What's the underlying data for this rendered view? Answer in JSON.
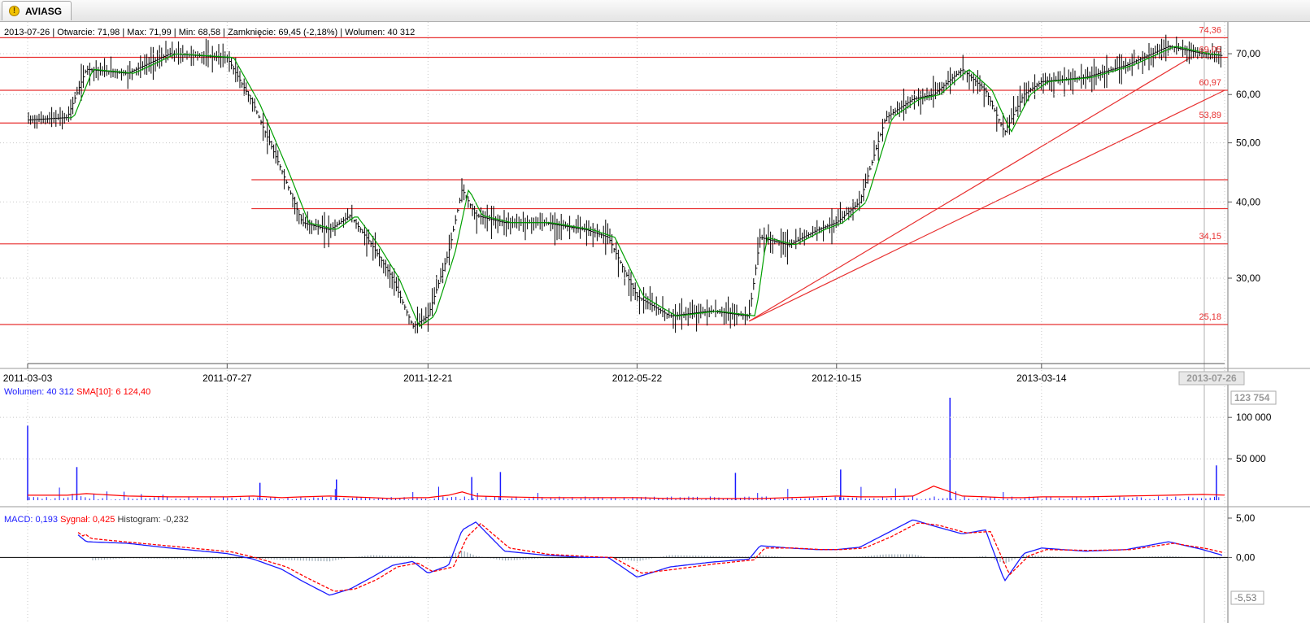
{
  "tab": {
    "title": "AVIASG",
    "icon": "warning-icon"
  },
  "header": {
    "date": "2013-07-26",
    "open": "Otwarcie: 71,98",
    "max": "Max: 71,99",
    "min": "Min: 68,58",
    "close": "Zamknięcie: 69,45 (-2,18%)",
    "volume": "Wolumen: 40 312"
  },
  "volume_legend": {
    "volume": "Wolumen: 40 312",
    "sma": "SMA[10]: 6 124,40"
  },
  "macd_legend": {
    "macd": "MACD: 0,193",
    "signal": "Sygnał: 0,425",
    "histogram": "Histogram: -0,232"
  },
  "colors": {
    "price_bar": "#000000",
    "sma_price": "#00a000",
    "level": "#e83030",
    "volume": "#1a1aff",
    "volume_sma": "#ff0000",
    "macd": "#1a1aff",
    "signal": "#ff0000",
    "histogram": "#9aa9b4",
    "grid": "#c8c8c8"
  },
  "chart_data": [
    {
      "type": "line",
      "title": "AVIASG",
      "y_scale": "log",
      "ylim": [
        22,
        77
      ],
      "yticks": [
        "70,00",
        "60,00",
        "50,00",
        "40,00",
        "30,00"
      ],
      "ytick_values": [
        70,
        60,
        50,
        40,
        30
      ],
      "xticks": [
        "2011-03-03",
        "2011-07-27",
        "2011-12-21",
        "2012-05-22",
        "2012-10-15",
        "2013-03-14"
      ],
      "x_last_label": "2013-07-26",
      "x": [
        "2011-03-03",
        "2011-04-01",
        "2011-04-15",
        "2011-05-15",
        "2011-06-15",
        "2011-07-27",
        "2011-08-15",
        "2011-09-05",
        "2011-09-20",
        "2011-10-10",
        "2011-10-25",
        "2011-11-10",
        "2011-11-25",
        "2011-12-10",
        "2011-12-21",
        "2012-01-05",
        "2012-01-15",
        "2012-01-25",
        "2012-02-15",
        "2012-03-15",
        "2012-04-15",
        "2012-05-01",
        "2012-05-22",
        "2012-06-15",
        "2012-07-15",
        "2012-08-12",
        "2012-08-20",
        "2012-09-10",
        "2012-10-01",
        "2012-10-15",
        "2012-11-01",
        "2012-11-20",
        "2012-12-10",
        "2012-12-25",
        "2013-01-15",
        "2013-02-01",
        "2013-02-15",
        "2013-03-01",
        "2013-03-14",
        "2013-04-15",
        "2013-05-15",
        "2013-06-15",
        "2013-07-10",
        "2013-07-26"
      ],
      "series": [
        {
          "name": "close",
          "values": [
            54.5,
            55,
            66,
            65,
            70,
            69,
            58,
            45,
            37,
            36,
            38,
            34,
            30,
            25,
            26,
            33,
            42,
            38,
            37,
            37,
            36,
            35,
            28,
            26,
            26.5,
            26,
            35,
            34,
            36,
            37,
            40,
            55,
            59,
            60,
            66,
            61,
            52,
            60,
            63,
            64,
            67,
            72,
            70,
            69.45
          ]
        }
      ],
      "levels": [
        {
          "value": 74.36,
          "label": "74,36"
        },
        {
          "value": 69.05,
          "label": "69,05"
        },
        {
          "value": 60.97,
          "label": "60,97"
        },
        {
          "value": 53.89,
          "label": "53,89"
        },
        {
          "value": 43.5,
          "label": ""
        },
        {
          "value": 39.0,
          "label": ""
        },
        {
          "value": 34.15,
          "label": "34,15"
        },
        {
          "value": 25.18,
          "label": "25,18"
        }
      ],
      "trendlines": [
        {
          "from": [
            "2012-08-12",
            25.5
          ],
          "to": [
            "2013-07-01",
            69.0
          ]
        },
        {
          "from": [
            "2012-08-12",
            25.5
          ],
          "to": [
            "2013-07-26",
            60.97
          ]
        }
      ]
    },
    {
      "type": "bar",
      "title": "Wolumen",
      "ylim": [
        0,
        123754
      ],
      "yticks": [
        "100 000",
        "50 000"
      ],
      "ytick_values": [
        100000,
        50000
      ],
      "max_label": "123 754",
      "spikes": [
        {
          "x": "2011-03-03",
          "value": 90000
        },
        {
          "x": "2011-04-08",
          "value": 40000
        },
        {
          "x": "2011-08-20",
          "value": 21000
        },
        {
          "x": "2011-10-15",
          "value": 25000
        },
        {
          "x": "2012-01-22",
          "value": 28000
        },
        {
          "x": "2012-02-12",
          "value": 34000
        },
        {
          "x": "2012-08-02",
          "value": 33000
        },
        {
          "x": "2012-10-18",
          "value": 37000
        },
        {
          "x": "2013-01-06",
          "value": 123754
        },
        {
          "x": "2013-07-20",
          "value": 42000
        }
      ],
      "sma_values": [
        6000,
        6000,
        8000,
        5000,
        4000,
        4000,
        5000,
        3000,
        4000,
        5000,
        4000,
        3000,
        2000,
        3000,
        3000,
        6000,
        10000,
        5000,
        4000,
        3000,
        3000,
        3000,
        3000,
        2000,
        2000,
        2000,
        2000,
        3000,
        4000,
        5000,
        4000,
        4000,
        5000,
        17000,
        5000,
        4000,
        3000,
        3000,
        4000,
        4000,
        5000,
        6000,
        7000,
        6124
      ]
    },
    {
      "type": "line",
      "title": "MACD",
      "ylim": [
        -5.53,
        5.0
      ],
      "yticks": [
        "5,00",
        "0,00"
      ],
      "ytick_values": [
        5.0,
        0.0
      ],
      "min_label": "-5,53",
      "series": [
        {
          "name": "MACD",
          "values": [
            5.0,
            4.0,
            2.0,
            1.8,
            1.2,
            0.5,
            -0.2,
            -1.5,
            -3.0,
            -4.8,
            -4.0,
            -2.5,
            -1.0,
            -0.5,
            -2.0,
            -1.0,
            3.5,
            4.5,
            0.8,
            0.3,
            0.0,
            0.0,
            -2.5,
            -1.2,
            -0.6,
            -0.2,
            1.5,
            1.2,
            1.0,
            1.0,
            1.3,
            3.0,
            4.8,
            4.0,
            3.0,
            3.5,
            -3.0,
            0.5,
            1.2,
            0.8,
            1.0,
            2.0,
            1.0,
            0.193
          ]
        },
        {
          "name": "Sygnał",
          "values": [
            4.8,
            4.2,
            2.4,
            1.9,
            1.4,
            0.7,
            -0.1,
            -1.2,
            -2.6,
            -4.3,
            -4.0,
            -2.8,
            -1.2,
            -0.7,
            -1.8,
            -1.2,
            2.6,
            4.3,
            1.2,
            0.4,
            0.1,
            0.0,
            -2.0,
            -1.5,
            -0.8,
            -0.3,
            1.2,
            1.2,
            1.0,
            1.0,
            1.2,
            2.6,
            4.4,
            4.1,
            3.1,
            3.3,
            -2.2,
            0.2,
            1.0,
            0.9,
            1.0,
            1.8,
            1.1,
            0.425
          ]
        },
        {
          "name": "Histogram",
          "values": [
            0.2,
            -0.2,
            -0.4,
            -0.1,
            -0.2,
            -0.2,
            -0.1,
            -0.3,
            -0.4,
            -0.5,
            0.0,
            0.3,
            0.2,
            0.2,
            -0.2,
            0.2,
            0.9,
            0.2,
            -0.4,
            -0.1,
            -0.1,
            0.0,
            -0.5,
            0.3,
            0.2,
            0.1,
            0.3,
            0.0,
            0.0,
            0.0,
            0.1,
            0.4,
            0.4,
            -0.1,
            -0.1,
            0.2,
            -0.8,
            0.3,
            0.2,
            -0.1,
            0.0,
            0.2,
            -0.1,
            -0.232
          ]
        }
      ]
    }
  ]
}
